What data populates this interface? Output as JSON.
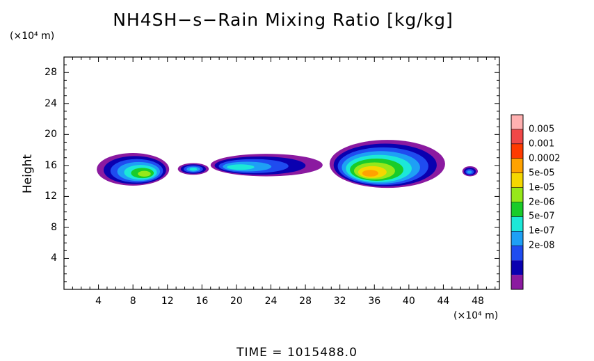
{
  "title": "NH4SH−s−Rain Mixing Ratio [kg/kg]",
  "y_unit": "(×10⁴ m)",
  "x_unit": "(×10⁴ m)",
  "y_label": "Height",
  "time_label": "TIME  =  1015488.0",
  "chart_data": {
    "type": "heatmap",
    "xlim": [
      0,
      50.5
    ],
    "ylim": [
      0,
      30
    ],
    "xticks": [
      "4",
      "8",
      "12",
      "16",
      "20",
      "24",
      "28",
      "32",
      "36",
      "40",
      "44",
      "48"
    ],
    "yticks": [
      "4",
      "8",
      "12",
      "16",
      "20",
      "24",
      "28"
    ],
    "colorbar": {
      "labels": [
        "0.005",
        "0.001",
        "0.0002",
        "5e-05",
        "1e-05",
        "2e-06",
        "5e-07",
        "1e-07",
        "2e-08"
      ],
      "colors": [
        "#8b1aa0",
        "#0a00b0",
        "#1f4cf0",
        "#1ea0f5",
        "#1ce8d8",
        "#19cc2a",
        "#96e81a",
        "#f5d700",
        "#ffa200",
        "#ff3b00",
        "#f04848",
        "#ffb0b0"
      ]
    },
    "clouds": [
      {
        "x0": 3.8,
        "x1": 12.2,
        "y0": 13.4,
        "y1": 17.6,
        "core_x": 9.6,
        "core_y": 14.8,
        "peak": 6
      },
      {
        "x0": 13.2,
        "x1": 16.8,
        "y0": 14.8,
        "y1": 16.3,
        "core_x": 15.0,
        "core_y": 15.5,
        "peak": 4
      },
      {
        "x0": 17.0,
        "x1": 30.0,
        "y0": 14.6,
        "y1": 17.5,
        "core_x": 19.5,
        "core_y": 15.7,
        "peak": 4
      },
      {
        "x0": 30.8,
        "x1": 44.2,
        "y0": 13.1,
        "y1": 19.3,
        "core_x": 35.2,
        "core_y": 14.8,
        "peak": 8
      },
      {
        "x0": 46.2,
        "x1": 48.0,
        "y0": 14.6,
        "y1": 15.9,
        "core_x": 47.0,
        "core_y": 15.1,
        "peak": 3
      }
    ]
  }
}
